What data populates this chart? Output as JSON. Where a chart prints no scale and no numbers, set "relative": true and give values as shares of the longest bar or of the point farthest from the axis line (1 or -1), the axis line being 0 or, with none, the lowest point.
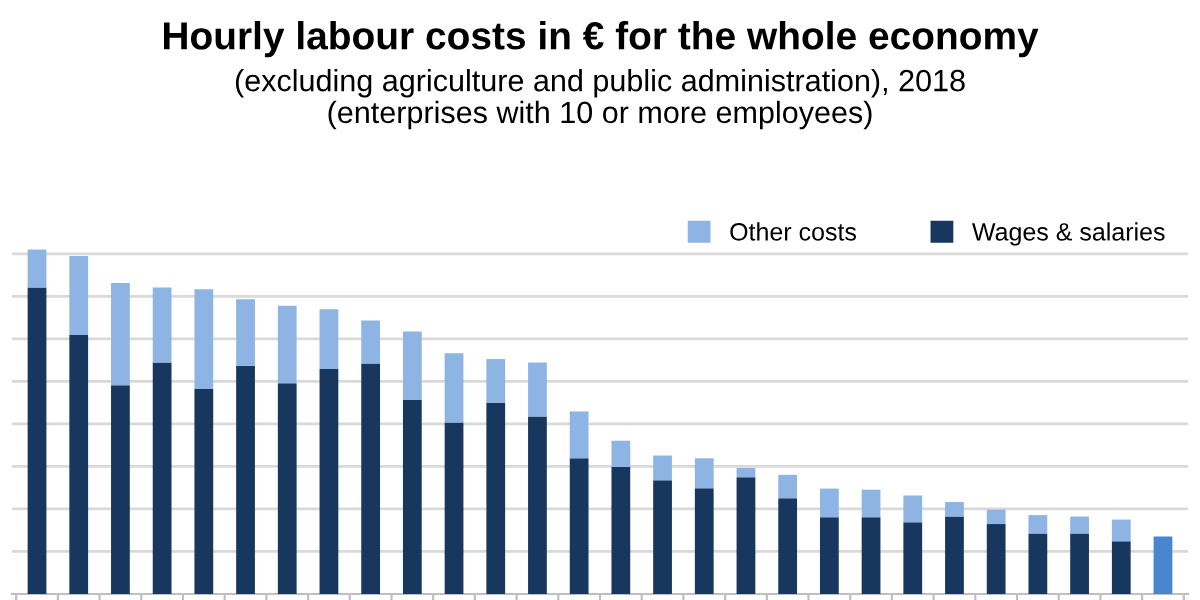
{
  "chart_data": {
    "type": "bar",
    "title": "Hourly labour costs in € for the whole economy",
    "subtitle": "(excluding agriculture and public administration), 2018\n(enterprises with 10 or more employees)",
    "categories": [
      null,
      null,
      null,
      null,
      null,
      null,
      null,
      null,
      null,
      null,
      null,
      null,
      null,
      null,
      null,
      null,
      null,
      null,
      null,
      null,
      null,
      null,
      null,
      null,
      null,
      null,
      null,
      null
    ],
    "stacked": true,
    "relative": true,
    "grid": "y",
    "legend": "top right",
    "series": [
      {
        "name": "Wages & salaries",
        "color": "#17375e",
        "colors": [
          "#17375e",
          "#17375e",
          "#17375e",
          "#17375e",
          "#17375e",
          "#17375e",
          "#17375e",
          "#17375e",
          "#17375e",
          "#17375e",
          "#17375e",
          "#17375e",
          "#17375e",
          "#17375e",
          "#17375e",
          "#17375e",
          "#17375e",
          "#17375e",
          "#17375e",
          "#17375e",
          "#17375e",
          "#17375e",
          "#17375e",
          "#17375e",
          "#17375e",
          "#17375e",
          "#17375e",
          "#4a86d0"
        ],
        "values": [
          0.89,
          0.752,
          0.606,
          0.672,
          0.595,
          0.663,
          0.612,
          0.653,
          0.669,
          0.563,
          0.498,
          0.555,
          0.515,
          0.394,
          0.369,
          0.33,
          0.307,
          0.339,
          0.278,
          0.223,
          0.223,
          0.208,
          0.225,
          0.203,
          0.176,
          0.176,
          0.153,
          0.167
        ]
      },
      {
        "name": "Other costs",
        "color": "#8db4e2",
        "values": [
          0.11,
          0.229,
          0.297,
          0.218,
          0.29,
          0.193,
          0.225,
          0.174,
          0.125,
          0.199,
          0.201,
          0.127,
          0.157,
          0.136,
          0.076,
          0.072,
          0.087,
          0.027,
          0.068,
          0.083,
          0.08,
          0.078,
          0.042,
          0.042,
          0.053,
          0.049,
          0.063,
          null
        ]
      }
    ]
  }
}
